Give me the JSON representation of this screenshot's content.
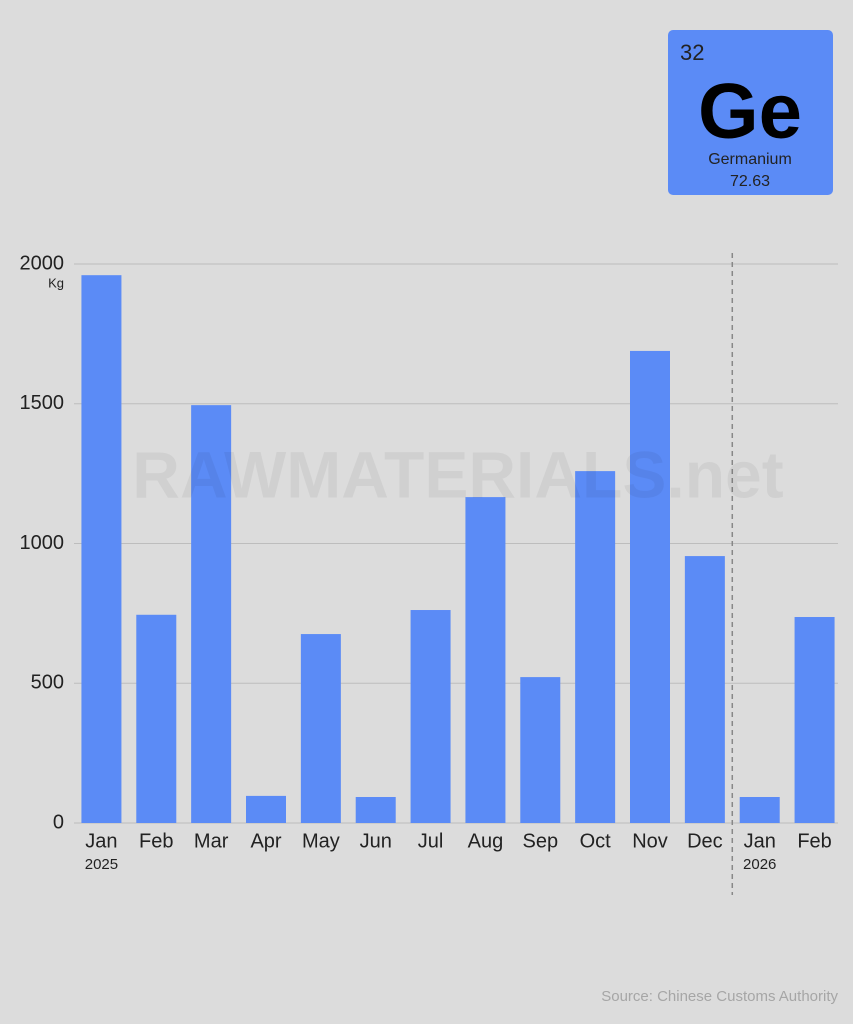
{
  "chart_data": {
    "type": "bar",
    "categories": [
      "Jan",
      "Feb",
      "Mar",
      "Apr",
      "May",
      "Jun",
      "Jul",
      "Aug",
      "Sep",
      "Oct",
      "Nov",
      "Dec",
      "Jan",
      "Feb"
    ],
    "sublabels": [
      "2025",
      null,
      null,
      null,
      null,
      null,
      null,
      null,
      null,
      null,
      null,
      null,
      "2026",
      null
    ],
    "values": [
      1960,
      745,
      1495,
      97,
      676,
      93,
      762,
      1166,
      522,
      1259,
      1689,
      955,
      93,
      737
    ],
    "color": "#5b8bf6",
    "ylim": [
      0,
      2000
    ],
    "yticks": [
      0,
      500,
      1000,
      1500,
      2000
    ],
    "y_unit": "Kg",
    "grid": true,
    "watermark": "RAWMATERIALS.net",
    "source": "Source: Chinese Customs Authority",
    "badge": {
      "number": "32",
      "symbol": "Ge",
      "name": "Germanium",
      "mass": "72.63"
    }
  }
}
